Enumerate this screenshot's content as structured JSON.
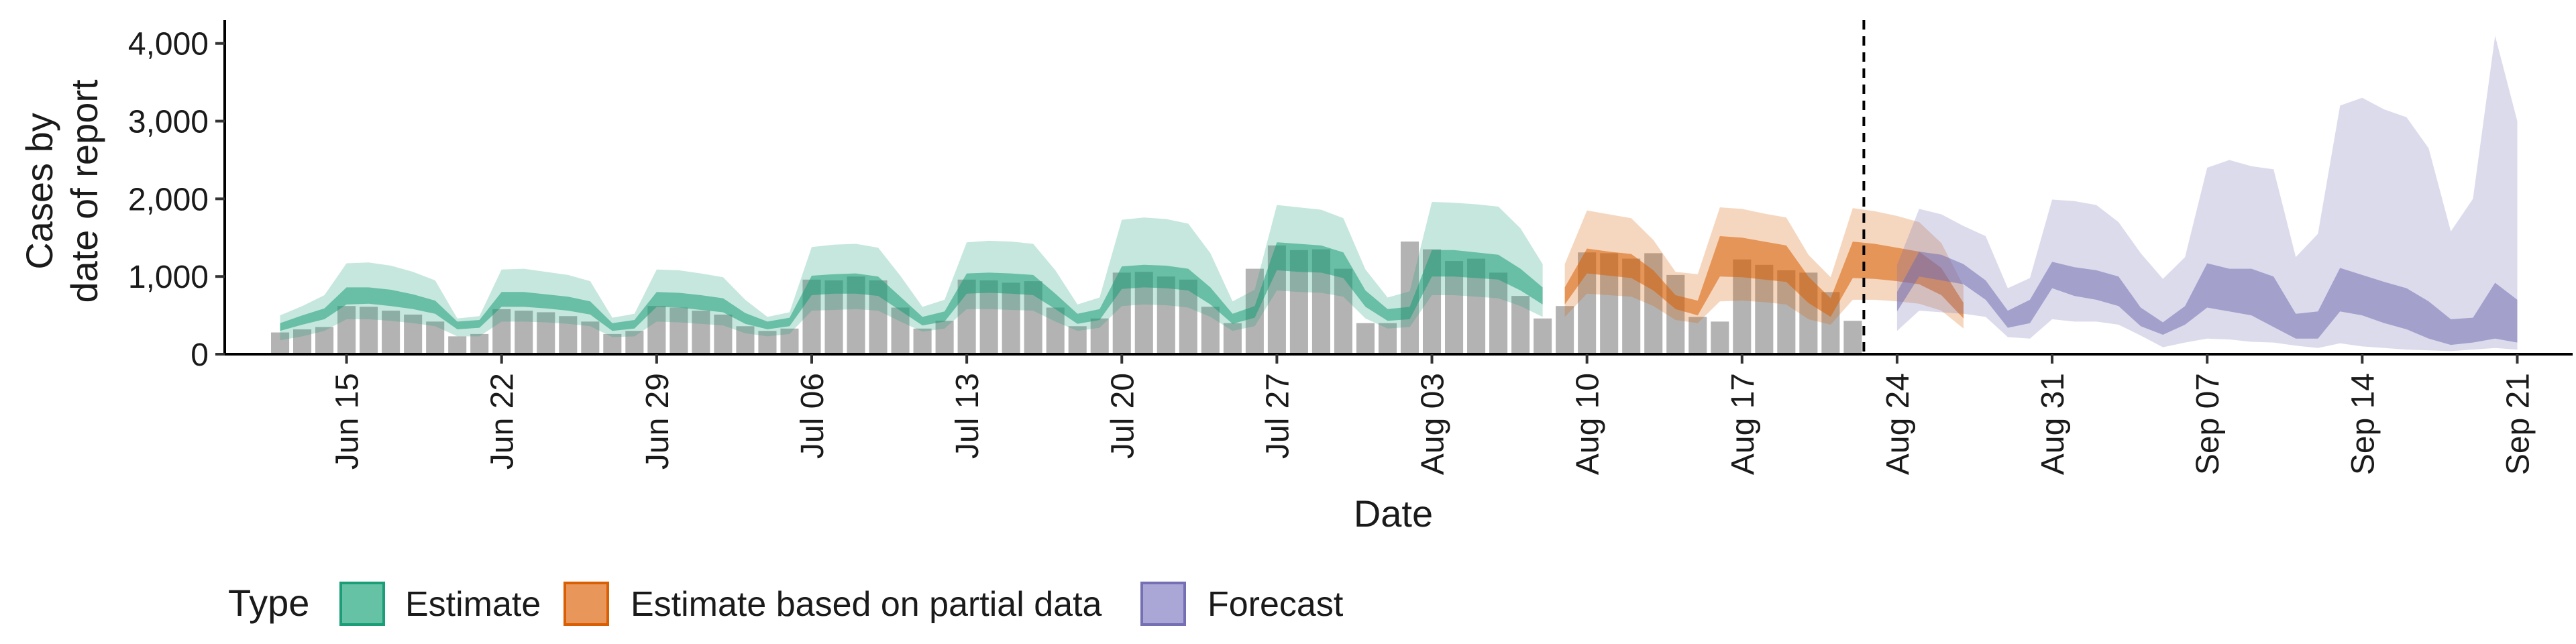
{
  "chart_data": {
    "type": "area",
    "xlabel": "Date",
    "ylabel": [
      "Cases by",
      "date of report"
    ],
    "ylim": [
      0,
      4300
    ],
    "y_ticks": [
      0,
      1000,
      2000,
      3000,
      4000
    ],
    "y_tick_labels": [
      "0",
      "1,000",
      "2,000",
      "3,000",
      "4,000"
    ],
    "x_tick_labels": [
      "Jun 15",
      "Jun 22",
      "Jun 29",
      "Jul 06",
      "Jul 13",
      "Jul 20",
      "Jul 27",
      "Aug 03",
      "Aug 10",
      "Aug 17",
      "Aug 24",
      "Aug 31",
      "Sep 07",
      "Sep 14",
      "Sep 21"
    ],
    "x_start_label": "Jun 12",
    "x_tick_first_index": 3,
    "x_tick_step": 7,
    "x_range_index": [
      -2.5,
      103.5
    ],
    "forecast_start_label": "Aug 23",
    "forecast_start_index": 72,
    "legend": {
      "title": "Type",
      "position": "bottom",
      "items": [
        {
          "label": "Estimate",
          "fill": "#66c2a5",
          "stroke": "#1b9e77"
        },
        {
          "label": "Estimate based on partial data",
          "fill": "#e8965a",
          "stroke": "#d95f02"
        },
        {
          "label": "Forecast",
          "fill": "#aaa6d6",
          "stroke": "#7570b3"
        }
      ]
    },
    "colors": {
      "bars": "#b3b3b3",
      "estimate": "#1b9e77",
      "partial": "#d95f02",
      "forecast": "#7570b3",
      "axis": "#000000"
    },
    "reported_cases": [
      280,
      320,
      350,
      620,
      610,
      560,
      510,
      420,
      230,
      260,
      580,
      560,
      540,
      490,
      420,
      260,
      300,
      620,
      600,
      560,
      510,
      360,
      300,
      330,
      960,
      950,
      1000,
      950,
      600,
      330,
      430,
      960,
      950,
      920,
      940,
      600,
      360,
      460,
      1050,
      1060,
      1000,
      960,
      610,
      400,
      1100,
      1400,
      1340,
      1350,
      1100,
      400,
      400,
      1450,
      1350,
      1200,
      1230,
      1050,
      750,
      460,
      620,
      1310,
      1300,
      1230,
      1300,
      1020,
      480,
      420,
      1220,
      1150,
      1080,
      1050,
      800,
      430
    ],
    "series": [
      {
        "name": "Estimate",
        "x_start_index": 0,
        "lower90": [
          180,
          230,
          300,
          450,
          450,
          430,
          400,
          360,
          230,
          230,
          420,
          420,
          410,
          390,
          360,
          220,
          230,
          420,
          410,
          390,
          370,
          270,
          230,
          260,
          560,
          570,
          580,
          560,
          420,
          290,
          330,
          580,
          580,
          570,
          560,
          420,
          300,
          340,
          620,
          640,
          630,
          600,
          480,
          300,
          360,
          820,
          800,
          790,
          740,
          460,
          330,
          350,
          760,
          760,
          740,
          720,
          620,
          480
        ],
        "lower50": [
          300,
          380,
          450,
          640,
          650,
          620,
          580,
          520,
          320,
          340,
          610,
          610,
          590,
          560,
          510,
          300,
          330,
          610,
          600,
          570,
          540,
          390,
          320,
          360,
          760,
          780,
          780,
          750,
          560,
          370,
          420,
          780,
          790,
          780,
          760,
          580,
          390,
          440,
          840,
          860,
          850,
          820,
          640,
          390,
          470,
          1080,
          1060,
          1050,
          980,
          610,
          430,
          450,
          1000,
          1000,
          980,
          960,
          820,
          640
        ],
        "upper50": [
          400,
          500,
          590,
          860,
          860,
          830,
          770,
          690,
          420,
          440,
          800,
          800,
          770,
          740,
          680,
          400,
          440,
          800,
          790,
          760,
          720,
          530,
          420,
          470,
          1010,
          1030,
          1040,
          1000,
          740,
          480,
          550,
          1040,
          1050,
          1040,
          1020,
          780,
          520,
          580,
          1130,
          1150,
          1140,
          1100,
          860,
          520,
          620,
          1440,
          1420,
          1400,
          1310,
          820,
          580,
          610,
          1340,
          1340,
          1310,
          1280,
          1100,
          860
        ],
        "upper90": [
          500,
          620,
          760,
          1170,
          1180,
          1140,
          1060,
          950,
          460,
          490,
          1090,
          1100,
          1060,
          1020,
          940,
          470,
          520,
          1090,
          1080,
          1040,
          990,
          700,
          480,
          540,
          1380,
          1410,
          1420,
          1370,
          1010,
          610,
          700,
          1440,
          1460,
          1450,
          1420,
          1080,
          640,
          730,
          1730,
          1760,
          1740,
          1680,
          1300,
          680,
          830,
          1920,
          1890,
          1860,
          1750,
          1090,
          730,
          810,
          1960,
          1950,
          1930,
          1900,
          1620,
          1160
        ]
      },
      {
        "name": "Estimate based on partial data",
        "x_start_index": 58,
        "lower90": [
          480,
          780,
          760,
          740,
          620,
          440,
          400,
          680,
          690,
          670,
          640,
          450,
          380,
          700,
          700,
          680,
          650,
          560,
          330
        ],
        "lower50": [
          640,
          1040,
          1010,
          980,
          820,
          580,
          500,
          1000,
          990,
          960,
          930,
          660,
          480,
          980,
          970,
          940,
          900,
          760,
          460
        ],
        "upper50": [
          860,
          1360,
          1320,
          1290,
          1080,
          760,
          690,
          1520,
          1500,
          1450,
          1400,
          1000,
          720,
          1450,
          1420,
          1370,
          1320,
          1110,
          660
        ],
        "upper90": [
          1160,
          1850,
          1800,
          1750,
          1470,
          1060,
          1030,
          1890,
          1870,
          1810,
          1760,
          1280,
          990,
          1880,
          1840,
          1780,
          1700,
          1430,
          880
        ]
      },
      {
        "name": "Forecast",
        "x_start_index": 73,
        "lower90": [
          300,
          560,
          540,
          520,
          480,
          220,
          200,
          450,
          420,
          420,
          380,
          240,
          90,
          150,
          200,
          190,
          160,
          150,
          110,
          80,
          140,
          100,
          80,
          60,
          50,
          40,
          60,
          80,
          60
        ],
        "lower50": [
          550,
          1000,
          950,
          900,
          700,
          340,
          400,
          850,
          750,
          700,
          620,
          360,
          250,
          380,
          600,
          550,
          500,
          350,
          200,
          200,
          550,
          500,
          400,
          320,
          200,
          120,
          150,
          200,
          150
        ],
        "upper50": [
          800,
          1320,
          1280,
          1160,
          950,
          560,
          700,
          1190,
          1120,
          1080,
          1000,
          600,
          410,
          620,
          1170,
          1100,
          1100,
          1000,
          520,
          550,
          1110,
          1020,
          930,
          850,
          680,
          450,
          470,
          920,
          700
        ],
        "upper90": [
          1150,
          1870,
          1800,
          1650,
          1520,
          850,
          980,
          1990,
          1970,
          1920,
          1700,
          1300,
          970,
          1250,
          2400,
          2500,
          2420,
          2380,
          1250,
          1550,
          3200,
          3300,
          3150,
          3050,
          2650,
          1580,
          2000,
          4100,
          3000
        ]
      }
    ]
  }
}
